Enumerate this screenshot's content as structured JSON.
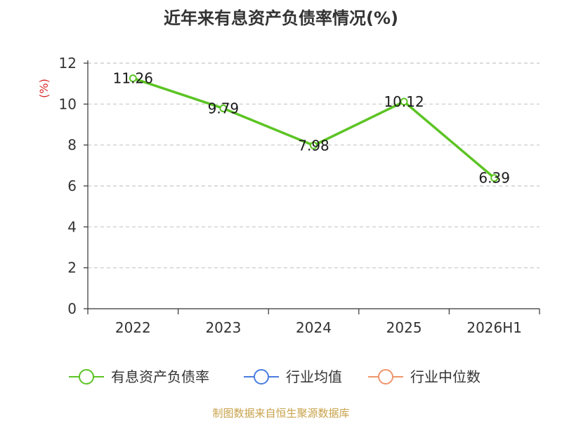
{
  "chart_data": {
    "type": "line",
    "title": "近年来有息资产负债率情况(%)",
    "ylabel": "(%)",
    "categories": [
      "2022",
      "2023",
      "2024",
      "2025",
      "2026H1"
    ],
    "ylim": [
      0,
      12
    ],
    "yticks": [
      0,
      2,
      4,
      6,
      8,
      10,
      12
    ],
    "grid": true,
    "series": [
      {
        "name": "有息资产负债率",
        "values": [
          11.26,
          9.79,
          7.98,
          10.12,
          6.39
        ],
        "color": "#5cc424",
        "labels": [
          "11.26",
          "9.79",
          "7.98",
          "10.12",
          "6.39"
        ]
      }
    ],
    "legend": {
      "position": "bottom",
      "items": [
        {
          "name": "有息资产负债率",
          "color": "#5cc424"
        },
        {
          "name": "行业均值",
          "color": "#4a7de0"
        },
        {
          "name": "行业中位数",
          "color": "#f0956b"
        }
      ]
    },
    "source": "制图数据来自恒生聚源数据库"
  }
}
